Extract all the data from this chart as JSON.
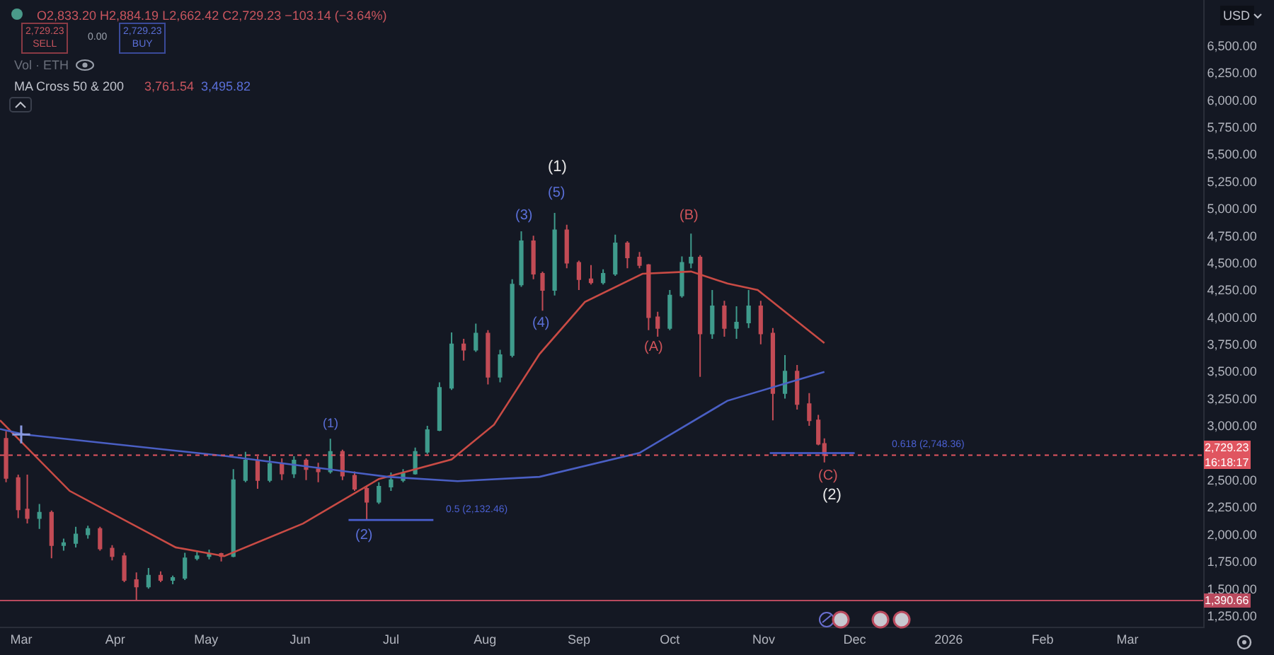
{
  "chart_data": {
    "type": "candlestick",
    "x": [
      "2025-02-24",
      "2025-02-28",
      "2025-03-03",
      "2025-03-07",
      "2025-03-11",
      "2025-03-15",
      "2025-03-19",
      "2025-03-23",
      "2025-03-27",
      "2025-03-31",
      "2025-04-04",
      "2025-04-08",
      "2025-04-12",
      "2025-04-16",
      "2025-04-20",
      "2025-04-24",
      "2025-04-28",
      "2025-05-02",
      "2025-05-06",
      "2025-05-10",
      "2025-05-14",
      "2025-05-18",
      "2025-05-22",
      "2025-05-26",
      "2025-05-30",
      "2025-06-03",
      "2025-06-07",
      "2025-06-11",
      "2025-06-15",
      "2025-06-19",
      "2025-06-23",
      "2025-06-27",
      "2025-07-01",
      "2025-07-05",
      "2025-07-09",
      "2025-07-13",
      "2025-07-17",
      "2025-07-21",
      "2025-07-25",
      "2025-07-29",
      "2025-08-02",
      "2025-08-06",
      "2025-08-10",
      "2025-08-13",
      "2025-08-17",
      "2025-08-20",
      "2025-08-24",
      "2025-08-28",
      "2025-09-01",
      "2025-09-05",
      "2025-09-09",
      "2025-09-13",
      "2025-09-17",
      "2025-09-21",
      "2025-09-24",
      "2025-09-27",
      "2025-10-01",
      "2025-10-05",
      "2025-10-08",
      "2025-10-11",
      "2025-10-15",
      "2025-10-19",
      "2025-10-23",
      "2025-10-27",
      "2025-10-31",
      "2025-11-04",
      "2025-11-08",
      "2025-11-12",
      "2025-11-16",
      "2025-11-19",
      "2025-11-21"
    ],
    "ohlc": [
      [
        2880,
        2950,
        2480,
        2520
      ],
      [
        2520,
        2550,
        2150,
        2230
      ],
      [
        2230,
        2550,
        2100,
        2150
      ],
      [
        2150,
        2280,
        2050,
        2200
      ],
      [
        2200,
        2220,
        1780,
        1900
      ],
      [
        1900,
        1960,
        1850,
        1920
      ],
      [
        1920,
        2070,
        1880,
        2000
      ],
      [
        2000,
        2080,
        1960,
        2050
      ],
      [
        2050,
        2070,
        1850,
        1870
      ],
      [
        1870,
        1900,
        1760,
        1800
      ],
      [
        1800,
        1830,
        1560,
        1580
      ],
      [
        1580,
        1650,
        1390,
        1520
      ],
      [
        1520,
        1690,
        1500,
        1620
      ],
      [
        1620,
        1660,
        1560,
        1580
      ],
      [
        1580,
        1620,
        1540,
        1600
      ],
      [
        1600,
        1830,
        1580,
        1780
      ],
      [
        1780,
        1850,
        1760,
        1800
      ],
      [
        1800,
        1860,
        1770,
        1820
      ],
      [
        1820,
        1830,
        1750,
        1800
      ],
      [
        1800,
        2600,
        1790,
        2500
      ],
      [
        2500,
        2760,
        2480,
        2680
      ],
      [
        2680,
        2720,
        2420,
        2500
      ],
      [
        2500,
        2720,
        2480,
        2650
      ],
      [
        2650,
        2700,
        2500,
        2560
      ],
      [
        2560,
        2720,
        2520,
        2680
      ],
      [
        2680,
        2700,
        2500,
        2600
      ],
      [
        2600,
        2660,
        2480,
        2580
      ],
      [
        2580,
        2880,
        2560,
        2760
      ],
      [
        2760,
        2780,
        2500,
        2540
      ],
      [
        2540,
        2580,
        2400,
        2420
      ],
      [
        2420,
        2450,
        2130,
        2300
      ],
      [
        2300,
        2480,
        2280,
        2440
      ],
      [
        2440,
        2570,
        2400,
        2500
      ],
      [
        2500,
        2600,
        2480,
        2560
      ],
      [
        2560,
        2800,
        2550,
        2760
      ],
      [
        2760,
        3000,
        2740,
        2960
      ],
      [
        2960,
        3400,
        2950,
        3350
      ],
      [
        3350,
        3860,
        3330,
        3750
      ],
      [
        3750,
        3800,
        3600,
        3700
      ],
      [
        3700,
        3940,
        3680,
        3850
      ],
      [
        3850,
        3880,
        3380,
        3450
      ],
      [
        3450,
        3700,
        3400,
        3650
      ],
      [
        3650,
        4350,
        3630,
        4300
      ],
      [
        4300,
        4790,
        4280,
        4700
      ],
      [
        4700,
        4750,
        4350,
        4400
      ],
      [
        4400,
        4420,
        4060,
        4250
      ],
      [
        4250,
        4960,
        4200,
        4800
      ],
      [
        4800,
        4850,
        4450,
        4500
      ],
      [
        4500,
        4520,
        4250,
        4350
      ],
      [
        4350,
        4480,
        4300,
        4320
      ],
      [
        4320,
        4440,
        4300,
        4400
      ],
      [
        4400,
        4760,
        4380,
        4680
      ],
      [
        4680,
        4700,
        4450,
        4550
      ],
      [
        4550,
        4600,
        4450,
        4480
      ],
      [
        4480,
        4490,
        3880,
        4000
      ],
      [
        4000,
        4050,
        3820,
        3900
      ],
      [
        3900,
        4250,
        3880,
        4200
      ],
      [
        4200,
        4560,
        4180,
        4500
      ],
      [
        4500,
        4770,
        4450,
        4550
      ],
      [
        4550,
        4570,
        3450,
        3850
      ],
      [
        3850,
        4250,
        3800,
        4100
      ],
      [
        4100,
        4150,
        3820,
        3900
      ],
      [
        3900,
        4100,
        3800,
        3950
      ],
      [
        3950,
        4250,
        3900,
        4100
      ],
      [
        4100,
        4150,
        3750,
        3850
      ],
      [
        3850,
        3900,
        3050,
        3300
      ],
      [
        3300,
        3650,
        3250,
        3500
      ],
      [
        3500,
        3560,
        3150,
        3200
      ],
      [
        3200,
        3300,
        3000,
        3050
      ],
      [
        3050,
        3100,
        2820,
        2833.2
      ],
      [
        2833.2,
        2884.19,
        2662.42,
        2729.23
      ]
    ],
    "colors": [
      "#c24b55",
      "#c24b55",
      "#c24b55",
      "#3f9b8c",
      "#c24b55",
      "#3f9b8c",
      "#3f9b8c",
      "#3f9b8c",
      "#c24b55",
      "#c24b55",
      "#c24b55",
      "#c24b55",
      "#3f9b8c",
      "#c24b55",
      "#3f9b8c",
      "#3f9b8c",
      "#3f9b8c",
      "#3f9b8c",
      "#c24b55",
      "#3f9b8c",
      "#3f9b8c",
      "#c24b55",
      "#3f9b8c",
      "#c24b55",
      "#3f9b8c",
      "#c24b55",
      "#c24b55",
      "#3f9b8c",
      "#c24b55",
      "#c24b55",
      "#c24b55",
      "#3f9b8c",
      "#3f9b8c",
      "#3f9b8c",
      "#3f9b8c",
      "#3f9b8c",
      "#3f9b8c",
      "#3f9b8c",
      "#c24b55",
      "#3f9b8c",
      "#c24b55",
      "#3f9b8c",
      "#3f9b8c",
      "#3f9b8c",
      "#c24b55",
      "#c24b55",
      "#3f9b8c",
      "#c24b55",
      "#c24b55",
      "#c24b55",
      "#3f9b8c",
      "#3f9b8c",
      "#c24b55",
      "#c24b55",
      "#c24b55",
      "#c24b55",
      "#3f9b8c",
      "#3f9b8c",
      "#3f9b8c",
      "#c24b55",
      "#3f9b8c",
      "#c24b55",
      "#3f9b8c",
      "#3f9b8c",
      "#c24b55",
      "#c24b55",
      "#3f9b8c",
      "#c24b55",
      "#c24b55",
      "#c24b55",
      "#c24b55"
    ],
    "series": [
      {
        "type": "line",
        "color": "#c94b45",
        "x": [
          "2025-02-22",
          "2025-03-17",
          "2025-04-21",
          "2025-05-07",
          "2025-06-02",
          "2025-06-27",
          "2025-07-21",
          "2025-08-04",
          "2025-08-19",
          "2025-09-03",
          "2025-09-22",
          "2025-10-08",
          "2025-10-20",
          "2025-10-30",
          "2025-11-21"
        ],
        "values": [
          3050,
          2400,
          1880,
          1800,
          2100,
          2510,
          2690,
          3010,
          3660,
          4140,
          4400,
          4420,
          4310,
          4250,
          3761.54
        ]
      },
      {
        "type": "line",
        "color": "#4a5fc4",
        "x": [
          "2025-02-22",
          "2025-03-02",
          "2025-05-08",
          "2025-06-30",
          "2025-07-23",
          "2025-08-19",
          "2025-09-21",
          "2025-10-20",
          "2025-11-21"
        ],
        "values": [
          2970,
          2920,
          2720,
          2530,
          2490,
          2530,
          2750,
          3230,
          3495.82
        ]
      },
      {
        "type": "scatter",
        "color": "#8a9ae0",
        "marker": "cross",
        "x": [
          "2025-03-01"
        ],
        "values": [
          2920
        ]
      },
      {
        "type": "line",
        "color": "#4a5fd0",
        "x": [
          "2025-06-17",
          "2025-07-15"
        ],
        "values": [
          2132.46,
          2132.46
        ]
      },
      {
        "type": "line",
        "color": "#4a5fd0",
        "x": [
          "2025-11-03",
          "2025-12-01"
        ],
        "values": [
          2748.36,
          2748.36
        ]
      }
    ],
    "xlim": [
      "2025-02-22",
      "2026-03-26"
    ],
    "xticks": [
      {
        "value": "2025-03-01",
        "label": "Mar"
      },
      {
        "value": "2025-04-01",
        "label": "Apr"
      },
      {
        "value": "2025-05-01",
        "label": "May"
      },
      {
        "value": "2025-06-01",
        "label": "Jun"
      },
      {
        "value": "2025-07-01",
        "label": "Jul"
      },
      {
        "value": "2025-08-01",
        "label": "Aug"
      },
      {
        "value": "2025-09-01",
        "label": "Sep"
      },
      {
        "value": "2025-10-01",
        "label": "Oct"
      },
      {
        "value": "2025-11-01",
        "label": "Nov"
      },
      {
        "value": "2025-12-01",
        "label": "Dec"
      },
      {
        "value": "2026-01-01",
        "label": "2026"
      },
      {
        "value": "2026-02-01",
        "label": "Feb"
      },
      {
        "value": "2026-03-01",
        "label": "Mar"
      }
    ],
    "ylim": [
      1150,
      6920
    ],
    "yticks": [
      {
        "value": 1250,
        "label": "1,250.00"
      },
      {
        "value": 1500,
        "label": "1,500.00"
      },
      {
        "value": 1750,
        "label": "1,750.00"
      },
      {
        "value": 2000,
        "label": "2,000.00"
      },
      {
        "value": 2250,
        "label": "2,250.00"
      },
      {
        "value": 2500,
        "label": "2,500.00"
      },
      {
        "value": 2750,
        "label": null
      },
      {
        "value": 3000,
        "label": "3,000.00"
      },
      {
        "value": 3250,
        "label": "3,250.00"
      },
      {
        "value": 3500,
        "label": "3,500.00"
      },
      {
        "value": 3750,
        "label": "3,750.00"
      },
      {
        "value": 4000,
        "label": "4,000.00"
      },
      {
        "value": 4250,
        "label": "4,250.00"
      },
      {
        "value": 4500,
        "label": "4,500.00"
      },
      {
        "value": 4750,
        "label": "4,750.00"
      },
      {
        "value": 5000,
        "label": "5,000.00"
      },
      {
        "value": 5250,
        "label": "5,250.00"
      },
      {
        "value": 5500,
        "label": "5,500.00"
      },
      {
        "value": 5750,
        "label": "5,750.00"
      },
      {
        "value": 6000,
        "label": "6,000.00"
      },
      {
        "value": 6250,
        "label": "6,250.00"
      },
      {
        "value": 6500,
        "label": "6,500.00"
      }
    ],
    "ref_lines": [
      {
        "axis": "y",
        "value": 2729.23,
        "label": "2,729.23\n16:18:17",
        "color": "#e05560",
        "line_style": "dotted"
      },
      {
        "axis": "y",
        "value": 1390.66,
        "label": "1,390.66",
        "color": "#b94a5e",
        "line_style": "solid"
      }
    ],
    "annotations": [
      "O2,833.20 H2,884.19 L2,662.42 C2,729.23 −103.14 (−3.64%)",
      "2,729.23\nSELL",
      "0.00",
      "2,729.23\nBUY",
      "Vol · ETH",
      "MA Cross 50 & 200",
      "3,761.54",
      "3,495.82",
      "USD",
      "0.5 (2,132.46)",
      "0.618 (2,748.36)",
      "(1)",
      "(2)",
      "(3)",
      "(4)",
      "(5)",
      "(1)",
      "(A)",
      "(B)",
      "(C)",
      "(2)"
    ]
  }
}
